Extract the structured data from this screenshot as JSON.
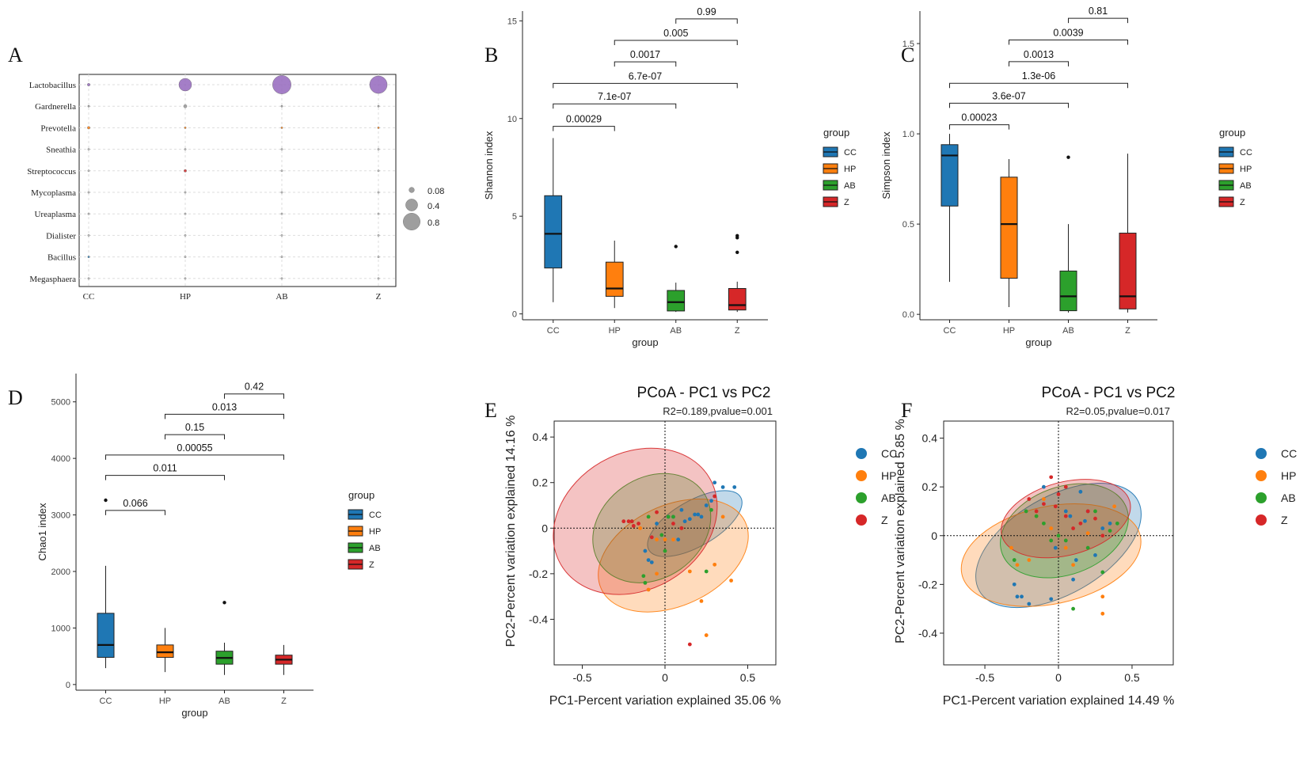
{
  "colors": {
    "CC": "#1f77b4",
    "HP": "#ff7f0e",
    "AB": "#2ca02c",
    "Z": "#d62728",
    "Lactobacillus": "#9467bd",
    "Gardnerella": "#999999"
  },
  "chart_data": [
    {
      "panel": "A",
      "type": "scatter",
      "subtype": "bubble",
      "categories": [
        "CC",
        "HP",
        "AB",
        "Z"
      ],
      "genera": [
        "Lactobacillus",
        "Gardnerella",
        "Prevotella",
        "Sneathia",
        "Streptococcus",
        "Mycoplasma",
        "Ureaplasma",
        "Dialister",
        "Bacillus",
        "Megasphaera"
      ],
      "values": [
        [
          0.02,
          0.45,
          0.95,
          0.85
        ],
        [
          0.004,
          0.03,
          0.003,
          0.003
        ],
        [
          0.02,
          0.01,
          0.003,
          0.004
        ],
        [
          0.004,
          0.002,
          0.001,
          0.001
        ],
        [
          0.004,
          0.02,
          0.001,
          0.001
        ],
        [
          0.004,
          0.004,
          0.001,
          0.001
        ],
        [
          0.004,
          0.004,
          0.001,
          0.001
        ],
        [
          0.002,
          0.001,
          0.001,
          0.001
        ],
        [
          0.004,
          0.001,
          0.001,
          0.001
        ],
        [
          0.002,
          0.001,
          0.001,
          0.001
        ]
      ],
      "size_legend": [
        "0.08",
        "0.4",
        "0.8"
      ],
      "size_legend_values": [
        0.08,
        0.4,
        0.8
      ]
    },
    {
      "panel": "B",
      "type": "boxplot",
      "categories": [
        "CC",
        "HP",
        "AB",
        "Z"
      ],
      "ylabel": "Shannon index",
      "xlabel": "group",
      "ylim": [
        -0.3,
        15.5
      ],
      "yticks": [
        0,
        5,
        10,
        15
      ],
      "tick_labels": [
        "0",
        "5",
        "10",
        "15"
      ],
      "boxes": [
        {
          "group": "CC",
          "min": 0.6,
          "q1": 2.35,
          "median": 4.1,
          "q3": 6.05,
          "max": 9.0,
          "outliers": []
        },
        {
          "group": "HP",
          "min": 0.3,
          "q1": 0.9,
          "median": 1.3,
          "q3": 2.65,
          "max": 3.75,
          "outliers": []
        },
        {
          "group": "AB",
          "min": 0.1,
          "q1": 0.15,
          "median": 0.6,
          "q3": 1.2,
          "max": 1.6,
          "outliers": [
            3.45
          ]
        },
        {
          "group": "Z",
          "min": 0.1,
          "q1": 0.2,
          "median": 0.45,
          "q3": 1.3,
          "max": 1.65,
          "outliers": [
            3.15,
            3.9,
            4.0
          ]
        }
      ],
      "comparisons": [
        {
          "from": "CC",
          "to": "HP",
          "label": "0.00029",
          "y": 9.6
        },
        {
          "from": "CC",
          "to": "AB",
          "label": "7.1e-07",
          "y": 10.75
        },
        {
          "from": "CC",
          "to": "Z",
          "label": "6.7e-07",
          "y": 11.8
        },
        {
          "from": "HP",
          "to": "AB",
          "label": "0.0017",
          "y": 12.9
        },
        {
          "from": "HP",
          "to": "Z",
          "label": "0.005",
          "y": 14.0
        },
        {
          "from": "AB",
          "to": "Z",
          "label": "0.99",
          "y": 15.1
        }
      ],
      "legend_title": "group"
    },
    {
      "panel": "C",
      "type": "boxplot",
      "categories": [
        "CC",
        "HP",
        "AB",
        "Z"
      ],
      "ylabel": "Simpson index",
      "xlabel": "group",
      "ylim": [
        -0.03,
        1.68
      ],
      "yticks": [
        0,
        0.5,
        1.0,
        1.5
      ],
      "tick_labels": [
        "0.0",
        "0.5",
        "1.0",
        "1.5"
      ],
      "boxes": [
        {
          "group": "CC",
          "min": 0.18,
          "q1": 0.6,
          "median": 0.88,
          "q3": 0.94,
          "max": 1.0,
          "outliers": []
        },
        {
          "group": "HP",
          "min": 0.04,
          "q1": 0.2,
          "median": 0.5,
          "q3": 0.76,
          "max": 0.86,
          "outliers": []
        },
        {
          "group": "AB",
          "min": 0.01,
          "q1": 0.02,
          "median": 0.1,
          "q3": 0.24,
          "max": 0.5,
          "outliers": [
            0.87
          ]
        },
        {
          "group": "Z",
          "min": 0.01,
          "q1": 0.03,
          "median": 0.1,
          "q3": 0.45,
          "max": 0.89,
          "outliers": []
        }
      ],
      "comparisons": [
        {
          "from": "CC",
          "to": "HP",
          "label": "0.00023",
          "y": 1.05
        },
        {
          "from": "CC",
          "to": "AB",
          "label": "3.6e-07",
          "y": 1.17
        },
        {
          "from": "CC",
          "to": "Z",
          "label": "1.3e-06",
          "y": 1.28
        },
        {
          "from": "HP",
          "to": "AB",
          "label": "0.0013",
          "y": 1.4
        },
        {
          "from": "HP",
          "to": "Z",
          "label": "0.0039",
          "y": 1.52
        },
        {
          "from": "AB",
          "to": "Z",
          "label": "0.81",
          "y": 1.64
        }
      ],
      "legend_title": "group"
    },
    {
      "panel": "D",
      "type": "boxplot",
      "categories": [
        "CC",
        "HP",
        "AB",
        "Z"
      ],
      "ylabel": "Chao1 index",
      "xlabel": "group",
      "ylim": [
        -100,
        5500
      ],
      "yticks": [
        0,
        1000,
        2000,
        3000,
        4000,
        5000
      ],
      "tick_labels": [
        "0",
        "1000",
        "2000",
        "3000",
        "4000",
        "5000"
      ],
      "boxes": [
        {
          "group": "CC",
          "min": 290,
          "q1": 480,
          "median": 700,
          "q3": 1260,
          "max": 2100,
          "outliers": [
            3260
          ]
        },
        {
          "group": "HP",
          "min": 220,
          "q1": 480,
          "median": 570,
          "q3": 700,
          "max": 1000,
          "outliers": []
        },
        {
          "group": "AB",
          "min": 170,
          "q1": 360,
          "median": 470,
          "q3": 590,
          "max": 740,
          "outliers": [
            1450
          ]
        },
        {
          "group": "Z",
          "min": 170,
          "q1": 360,
          "median": 440,
          "q3": 520,
          "max": 700,
          "outliers": []
        }
      ],
      "comparisons": [
        {
          "from": "CC",
          "to": "HP",
          "label": "0.066",
          "y": 3080
        },
        {
          "from": "CC",
          "to": "AB",
          "label": "0.011",
          "y": 3700
        },
        {
          "from": "CC",
          "to": "Z",
          "label": "0.00055",
          "y": 4060
        },
        {
          "from": "HP",
          "to": "AB",
          "label": "0.15",
          "y": 4420
        },
        {
          "from": "HP",
          "to": "Z",
          "label": "0.013",
          "y": 4780
        },
        {
          "from": "AB",
          "to": "Z",
          "label": "0.42",
          "y": 5140
        }
      ],
      "legend_title": "group"
    },
    {
      "panel": "E",
      "type": "scatter",
      "title": "PCoA - PC1 vs PC2",
      "subtitle": "R2=0.189,pvalue=0.001",
      "xlabel": "PC1-Percent variation explained 35.06 %",
      "ylabel": "PC2-Percent variation explained 14.16 %",
      "xlim": [
        -0.67,
        0.67
      ],
      "ylim": [
        -0.6,
        0.47
      ],
      "xticks": [
        -0.5,
        0,
        0.5
      ],
      "x_tick_labels": [
        "-0.5",
        "0",
        "0.5"
      ],
      "yticks": [
        -0.4,
        -0.2,
        0,
        0.2,
        0.4
      ],
      "y_tick_labels": [
        "-0.4",
        "-0.2",
        "0",
        "0.2",
        "0.4"
      ],
      "legend": [
        "CC",
        "HP",
        "AB",
        "Z"
      ],
      "ellipses": [
        {
          "group": "CC",
          "cx": 0.18,
          "cy": 0.02,
          "rx": 0.32,
          "ry": 0.1,
          "angle": -30
        },
        {
          "group": "HP",
          "cx": 0.05,
          "cy": -0.12,
          "rx": 0.48,
          "ry": 0.22,
          "angle": -25
        },
        {
          "group": "AB",
          "cx": -0.08,
          "cy": 0.0,
          "rx": 0.38,
          "ry": 0.22,
          "angle": -35
        },
        {
          "group": "Z",
          "cx": -0.18,
          "cy": 0.03,
          "rx": 0.52,
          "ry": 0.3,
          "angle": -30
        }
      ],
      "series": [
        {
          "name": "CC",
          "x": [
            0.3,
            0.25,
            0.22,
            0.18,
            0.12,
            0.05,
            0.1,
            0.15,
            0.35,
            0.42,
            0.28,
            -0.1,
            -0.08,
            -0.05,
            0.08,
            0.2,
            0.02,
            -0.12
          ],
          "y": [
            0.2,
            0.1,
            0.05,
            0.06,
            0.03,
            0.05,
            0.08,
            0.04,
            0.18,
            0.18,
            0.12,
            -0.14,
            -0.15,
            0.02,
            -0.05,
            0.06,
            0.05,
            -0.1
          ]
        },
        {
          "name": "HP",
          "x": [
            0.25,
            0.4,
            0.15,
            0.3,
            0.22,
            -0.05,
            0.0,
            -0.1,
            0.35,
            0.1,
            -0.15,
            -0.05,
            0.05
          ],
          "y": [
            -0.47,
            -0.23,
            -0.19,
            -0.16,
            -0.32,
            -0.05,
            -0.05,
            -0.27,
            0.05,
            0.0,
            0.0,
            -0.2,
            -0.05
          ]
        },
        {
          "name": "AB",
          "x": [
            -0.02,
            0.0,
            -0.13,
            -0.12,
            0.25,
            -0.1,
            0.02,
            -0.2,
            0.05,
            0.28
          ],
          "y": [
            -0.03,
            -0.1,
            -0.21,
            -0.24,
            -0.19,
            0.05,
            0.05,
            0.03,
            0.05,
            0.08
          ]
        },
        {
          "name": "Z",
          "x": [
            0.15,
            -0.2,
            -0.16,
            -0.22,
            -0.19,
            0.3,
            -0.05,
            0.1,
            -0.08,
            -0.25,
            0.05
          ],
          "y": [
            -0.51,
            0.03,
            0.02,
            0.03,
            0.01,
            0.14,
            0.07,
            0.0,
            -0.04,
            0.03,
            0.02
          ]
        }
      ]
    },
    {
      "panel": "F",
      "type": "scatter",
      "title": "PCoA - PC1 vs PC2",
      "subtitle": "R2=0.05,pvalue=0.017",
      "xlabel": "PC1-Percent variation explained 14.49 %",
      "ylabel": "PC2-Percent variation explained 5.85 %",
      "xlim": [
        -0.78,
        0.78
      ],
      "ylim": [
        -0.53,
        0.47
      ],
      "xticks": [
        -0.5,
        0,
        0.5
      ],
      "x_tick_labels": [
        "-0.5",
        "0",
        "0.5"
      ],
      "yticks": [
        -0.4,
        -0.2,
        0,
        0.2,
        0.4
      ],
      "y_tick_labels": [
        "-0.4",
        "-0.2",
        "0",
        "0.2",
        "0.4"
      ],
      "legend": [
        "CC",
        "HP",
        "AB",
        "Z"
      ],
      "ellipses": [
        {
          "group": "CC",
          "cx": 0.0,
          "cy": -0.04,
          "rx": 0.62,
          "ry": 0.2,
          "angle": -30
        },
        {
          "group": "HP",
          "cx": -0.05,
          "cy": -0.08,
          "rx": 0.62,
          "ry": 0.2,
          "angle": -12
        },
        {
          "group": "AB",
          "cx": 0.04,
          "cy": 0.02,
          "rx": 0.45,
          "ry": 0.18,
          "angle": -20
        },
        {
          "group": "Z",
          "cx": 0.05,
          "cy": 0.07,
          "rx": 0.45,
          "ry": 0.15,
          "angle": -15
        }
      ],
      "series": [
        {
          "name": "CC",
          "x": [
            -0.3,
            -0.25,
            -0.2,
            -0.05,
            0.1,
            0.15,
            0.2,
            0.3,
            0.35,
            0.05,
            -0.1,
            0.25,
            -0.28,
            0.12,
            0.18,
            -0.02,
            0.08
          ],
          "y": [
            -0.2,
            -0.25,
            -0.28,
            -0.26,
            -0.18,
            0.18,
            0.1,
            0.03,
            0.05,
            0.1,
            0.2,
            -0.08,
            -0.25,
            -0.1,
            0.06,
            -0.05,
            0.08
          ]
        },
        {
          "name": "HP",
          "x": [
            -0.32,
            -0.28,
            0.3,
            0.3,
            -0.1,
            -0.05,
            0.2,
            0.05,
            0.38,
            -0.2,
            -0.15,
            0.1
          ],
          "y": [
            -0.05,
            -0.12,
            -0.32,
            -0.25,
            0.15,
            0.03,
            0.01,
            -0.05,
            0.12,
            -0.1,
            0.08,
            -0.12
          ]
        },
        {
          "name": "AB",
          "x": [
            -0.22,
            -0.15,
            -0.1,
            0.0,
            0.05,
            0.2,
            0.3,
            0.35,
            0.4,
            -0.3,
            0.1,
            0.25,
            -0.05
          ],
          "y": [
            0.1,
            0.08,
            0.05,
            0.0,
            -0.02,
            -0.05,
            -0.15,
            0.02,
            0.05,
            -0.1,
            -0.3,
            0.1,
            -0.02
          ]
        },
        {
          "name": "Z",
          "x": [
            -0.05,
            0.0,
            0.05,
            -0.2,
            -0.1,
            -0.15,
            0.1,
            0.25,
            0.15,
            0.3,
            0.05,
            -0.02,
            0.2
          ],
          "y": [
            0.24,
            0.17,
            0.2,
            0.15,
            0.13,
            0.1,
            0.03,
            0.07,
            0.05,
            0.0,
            0.08,
            0.12,
            0.1
          ]
        }
      ]
    }
  ],
  "panel_letters": [
    "A",
    "B",
    "C",
    "D",
    "E",
    "F"
  ],
  "legend_groups": [
    "CC",
    "HP",
    "AB",
    "Z"
  ]
}
